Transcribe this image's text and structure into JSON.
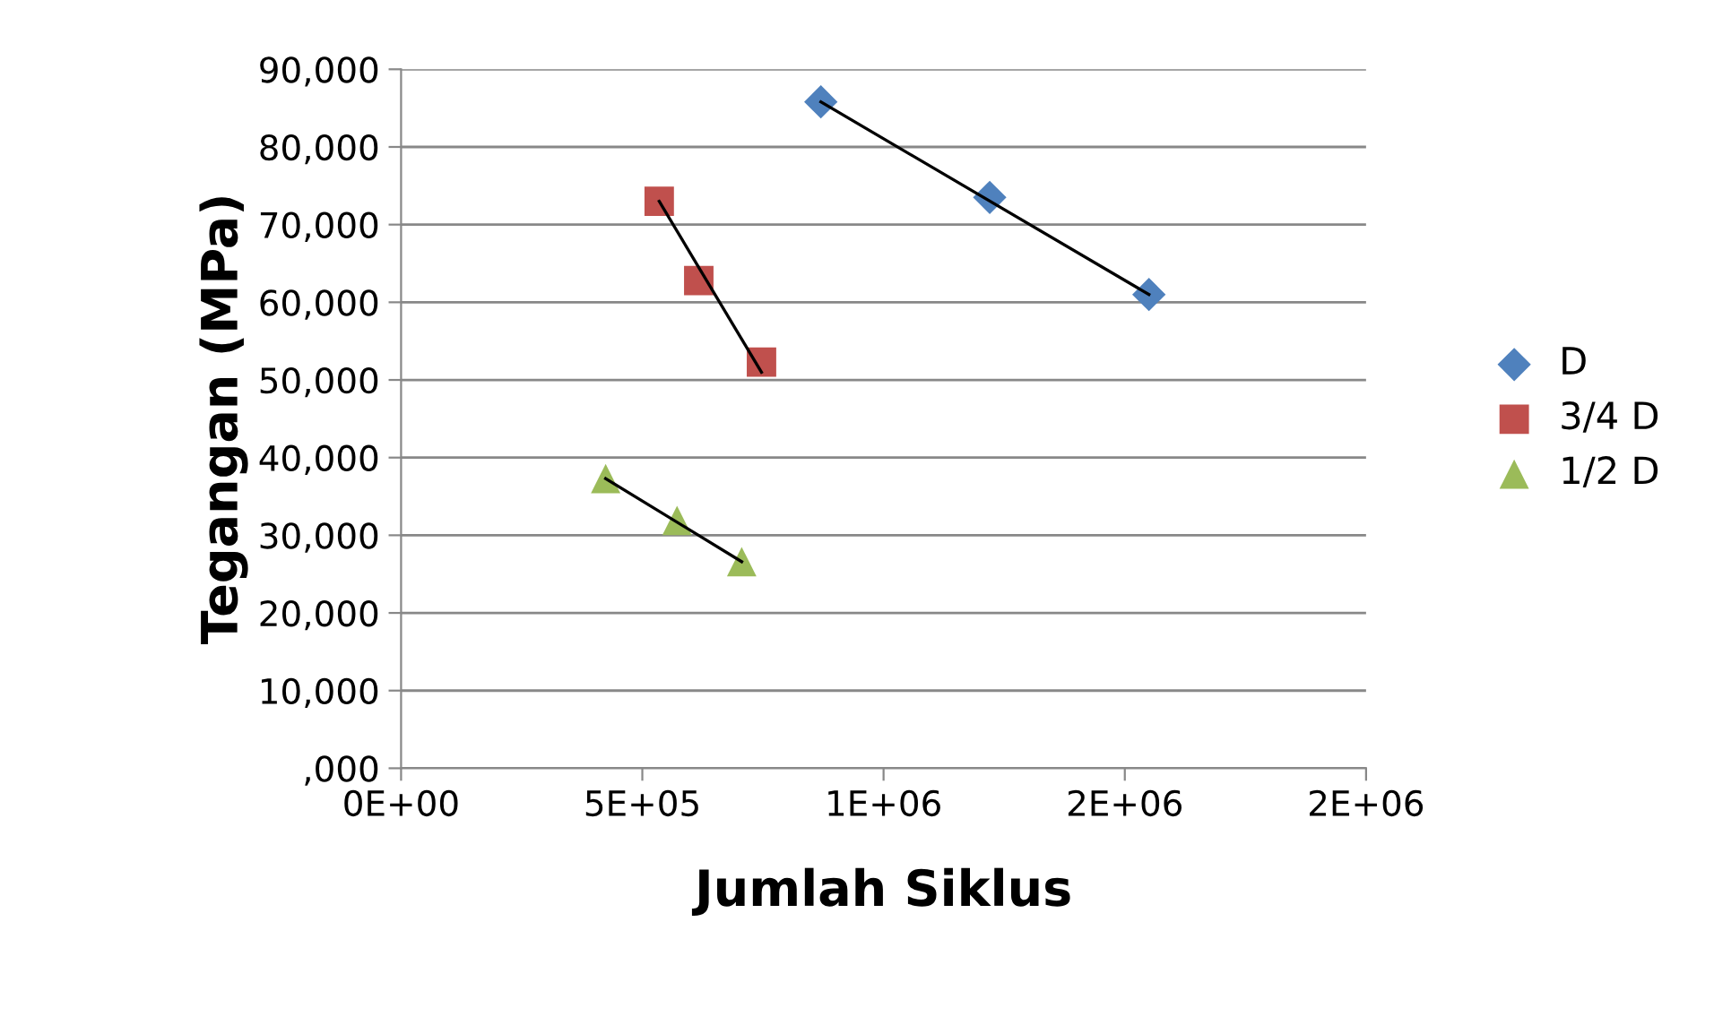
{
  "chart_data": {
    "type": "scatter",
    "xlabel": "Jumlah Siklus",
    "ylabel": "Tegangan (MPa)",
    "xlim": [
      0,
      2000000
    ],
    "ylim": [
      0,
      90000
    ],
    "xticks": [
      {
        "value": 0,
        "label": "0E+00"
      },
      {
        "value": 500000,
        "label": "5E+05"
      },
      {
        "value": 1000000,
        "label": "1E+06"
      },
      {
        "value": 1500000,
        "label": "2E+06"
      },
      {
        "value": 2000000,
        "label": "2E+06"
      }
    ],
    "yticks": [
      {
        "value": 0,
        "label": ",000"
      },
      {
        "value": 10000,
        "label": "10,000"
      },
      {
        "value": 20000,
        "label": "20,000"
      },
      {
        "value": 30000,
        "label": "30,000"
      },
      {
        "value": 40000,
        "label": "40,000"
      },
      {
        "value": 50000,
        "label": "50,000"
      },
      {
        "value": 60000,
        "label": "60,000"
      },
      {
        "value": 70000,
        "label": "70,000"
      },
      {
        "value": 80000,
        "label": "80,000"
      },
      {
        "value": 90000,
        "label": "90,000"
      }
    ],
    "grid": "y",
    "legend": "right",
    "series": [
      {
        "name": "D",
        "color": "#4f81bd",
        "marker": "diamond",
        "x": [
          870000,
          1220000,
          1550000
        ],
        "values": [
          85800,
          73500,
          61000
        ]
      },
      {
        "name": "3/4 D",
        "color": "#c0504d",
        "marker": "square",
        "x": [
          535000,
          617000,
          747000
        ],
        "values": [
          73000,
          62800,
          52300
        ]
      },
      {
        "name": "1/2 D",
        "color": "#9bbb59",
        "marker": "triangle",
        "x": [
          424000,
          572000,
          706000
        ],
        "values": [
          37300,
          31900,
          26600
        ]
      },
      {
        "type": "line",
        "color": "#000000",
        "marker": "none",
        "x": [
          870000,
          1550000
        ],
        "values": [
          85800,
          61000
        ]
      },
      {
        "type": "line",
        "color": "#000000",
        "marker": "none",
        "x": [
          535000,
          747000
        ],
        "values": [
          73000,
          51000
        ]
      },
      {
        "type": "line",
        "color": "#000000",
        "marker": "none",
        "x": [
          424000,
          706000
        ],
        "values": [
          37300,
          26600
        ]
      }
    ]
  }
}
